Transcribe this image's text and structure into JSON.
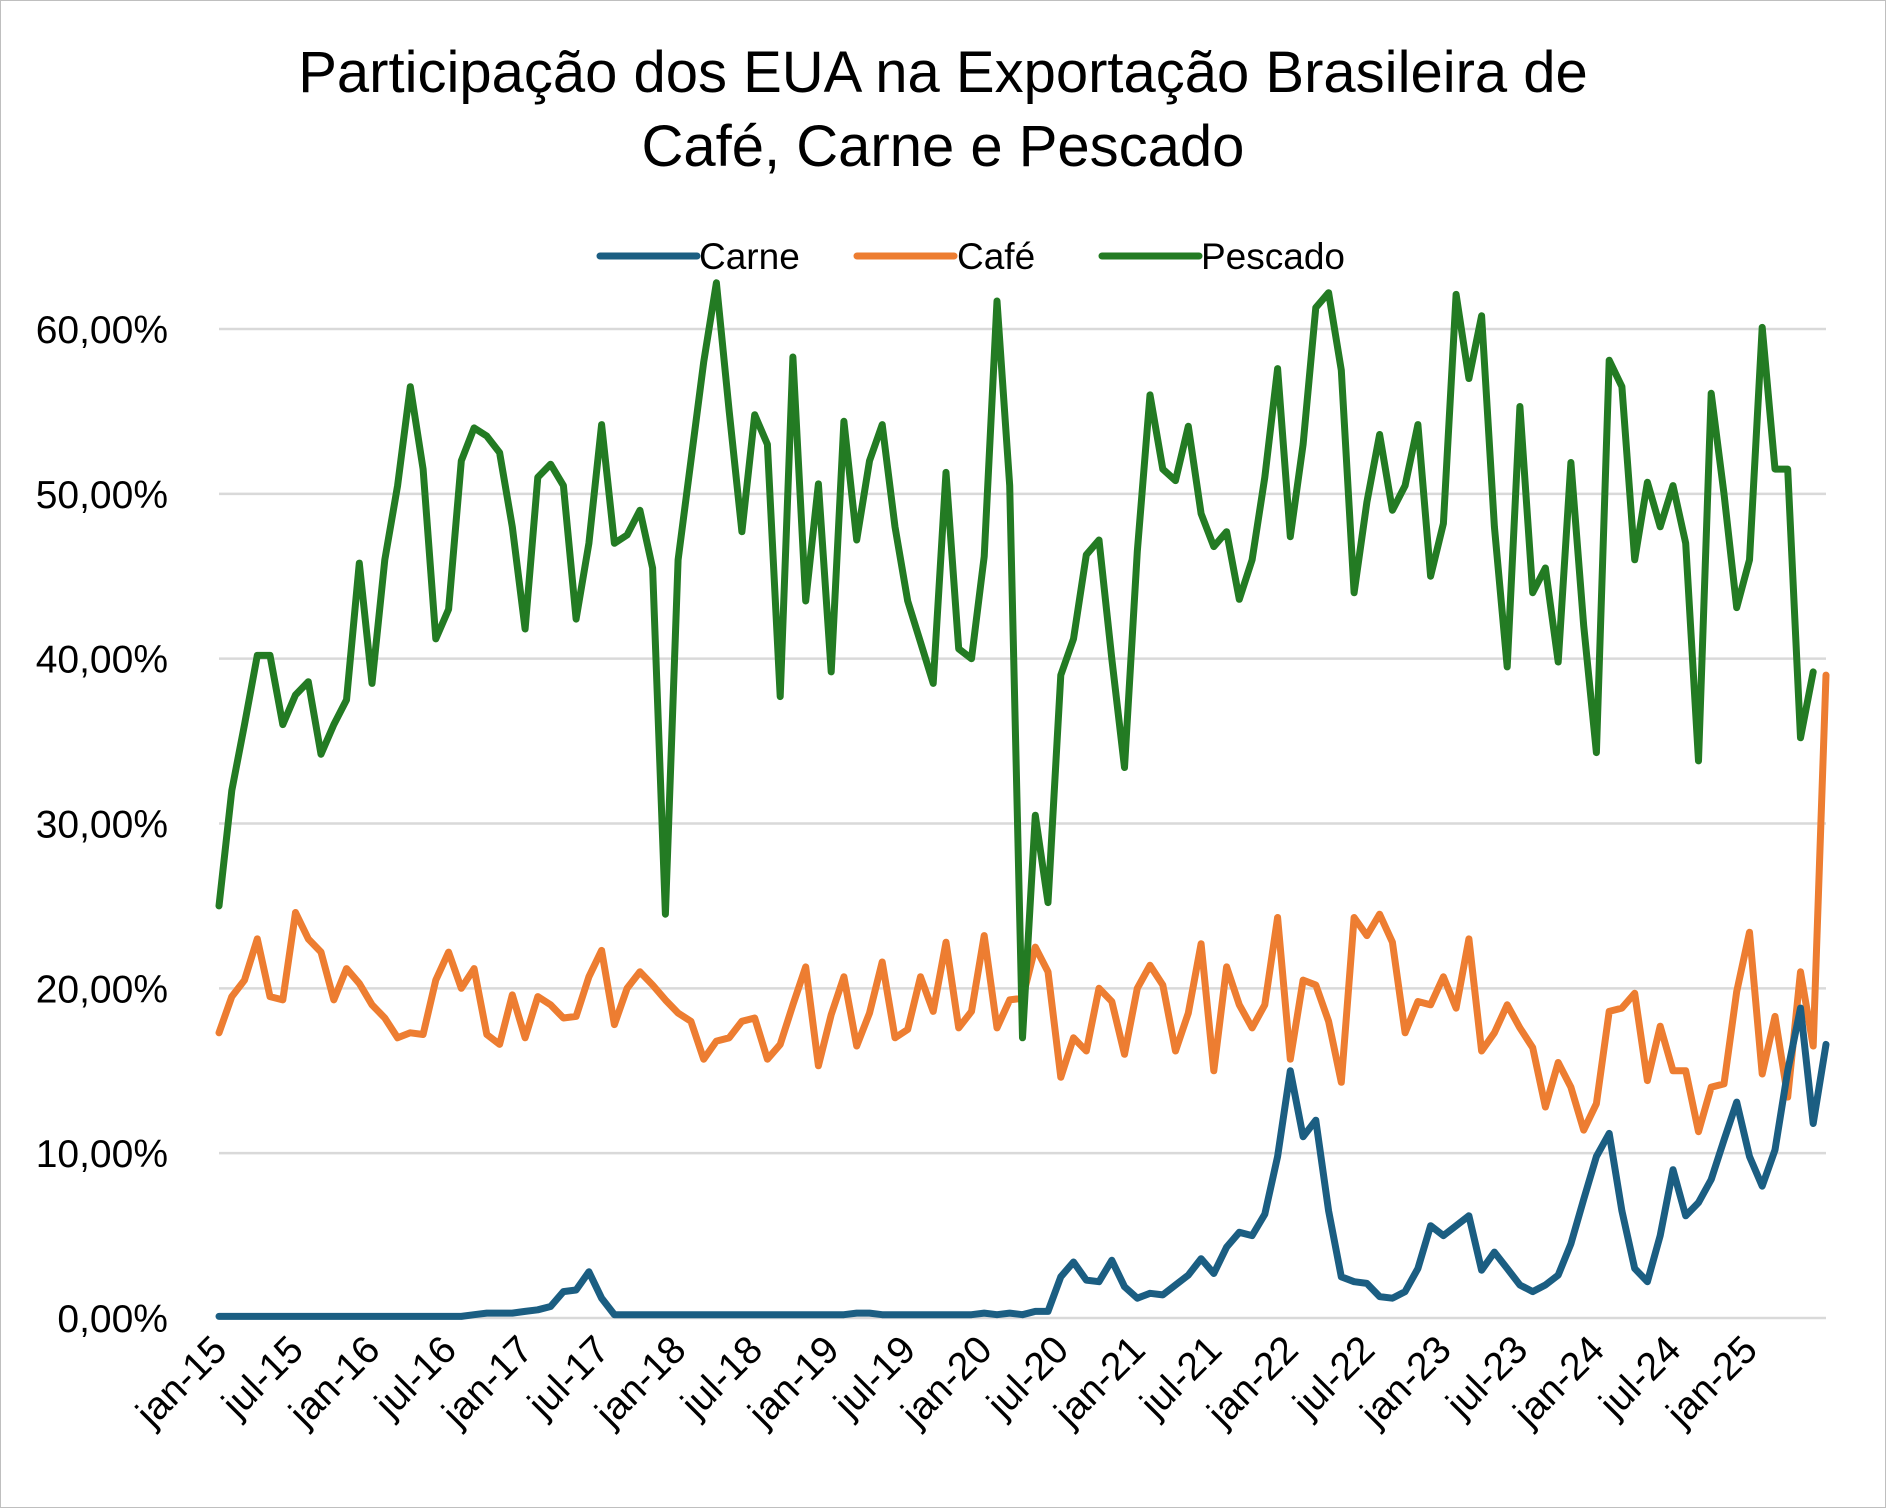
{
  "chart_data": {
    "type": "line",
    "title_lines": [
      "Participação dos EUA na Exportação Brasileira de",
      "Café, Carne e Pescado"
    ],
    "xlabel": "",
    "ylabel": "",
    "ylim": [
      0,
      0.6
    ],
    "yticks": [
      0,
      0.1,
      0.2,
      0.3,
      0.4,
      0.5,
      0.6
    ],
    "ytick_labels": [
      "0,00%",
      "10,00%",
      "20,00%",
      "30,00%",
      "40,00%",
      "50,00%",
      "60,00%"
    ],
    "xtick_labels": [
      "jan-15",
      "jul-15",
      "jan-16",
      "jul-16",
      "jan-17",
      "jul-17",
      "jan-18",
      "jul-18",
      "jan-19",
      "jul-19",
      "jan-20",
      "jul-20",
      "jan-21",
      "jul-21",
      "jan-22",
      "jul-22",
      "jan-23",
      "jul-23",
      "jan-24",
      "jul-24",
      "jan-25"
    ],
    "xtick_every_months": 6,
    "grid": true,
    "legend_position": "top-center",
    "colors": {
      "Carne": "#1b5e82",
      "Café": "#ed7d31",
      "Pescado": "#237b23",
      "grid": "#d9d9d9"
    },
    "series": [
      {
        "name": "Carne",
        "color": "#1b5e82",
        "values": [
          0.001,
          0.001,
          0.001,
          0.001,
          0.001,
          0.001,
          0.001,
          0.001,
          0.001,
          0.001,
          0.001,
          0.001,
          0.001,
          0.001,
          0.001,
          0.001,
          0.001,
          0.001,
          0.001,
          0.001,
          0.002,
          0.003,
          0.003,
          0.003,
          0.004,
          0.005,
          0.007,
          0.016,
          0.017,
          0.028,
          0.012,
          0.002,
          0.002,
          0.002,
          0.002,
          0.002,
          0.002,
          0.002,
          0.002,
          0.002,
          0.002,
          0.002,
          0.002,
          0.002,
          0.002,
          0.002,
          0.002,
          0.002,
          0.002,
          0.002,
          0.003,
          0.003,
          0.002,
          0.002,
          0.002,
          0.002,
          0.002,
          0.002,
          0.002,
          0.002,
          0.003,
          0.002,
          0.003,
          0.002,
          0.004,
          0.004,
          0.025,
          0.034,
          0.023,
          0.022,
          0.035,
          0.019,
          0.012,
          0.015,
          0.014,
          0.02,
          0.026,
          0.036,
          0.027,
          0.043,
          0.052,
          0.05,
          0.063,
          0.098,
          0.15,
          0.11,
          0.12,
          0.065,
          0.025,
          0.022,
          0.021,
          0.013,
          0.012,
          0.016,
          0.03,
          0.056,
          0.05,
          0.056,
          0.062,
          0.029,
          0.04,
          0.03,
          0.02,
          0.016,
          0.02,
          0.026,
          0.045,
          0.072,
          0.098,
          0.112,
          0.065,
          0.03,
          0.022,
          0.05,
          0.09,
          0.062,
          0.07,
          0.084,
          0.108,
          0.131,
          0.098,
          0.08,
          0.102,
          0.15,
          0.188,
          0.118,
          0.166
        ]
      },
      {
        "name": "Café",
        "color": "#ed7d31",
        "values": [
          0.173,
          0.195,
          0.205,
          0.23,
          0.195,
          0.193,
          0.246,
          0.23,
          0.222,
          0.193,
          0.212,
          0.203,
          0.19,
          0.182,
          0.17,
          0.173,
          0.172,
          0.205,
          0.222,
          0.2,
          0.212,
          0.172,
          0.166,
          0.196,
          0.17,
          0.195,
          0.19,
          0.182,
          0.183,
          0.207,
          0.223,
          0.178,
          0.2,
          0.21,
          0.202,
          0.193,
          0.185,
          0.18,
          0.157,
          0.168,
          0.17,
          0.18,
          0.182,
          0.157,
          0.166,
          0.19,
          0.213,
          0.153,
          0.184,
          0.207,
          0.165,
          0.185,
          0.216,
          0.17,
          0.175,
          0.207,
          0.186,
          0.228,
          0.176,
          0.186,
          0.232,
          0.176,
          0.193,
          0.194,
          0.225,
          0.21,
          0.146,
          0.17,
          0.162,
          0.2,
          0.192,
          0.16,
          0.2,
          0.214,
          0.202,
          0.162,
          0.185,
          0.227,
          0.15,
          0.213,
          0.19,
          0.176,
          0.19,
          0.243,
          0.157,
          0.205,
          0.202,
          0.18,
          0.143,
          0.243,
          0.232,
          0.245,
          0.228,
          0.173,
          0.192,
          0.19,
          0.207,
          0.188,
          0.23,
          0.162,
          0.173,
          0.19,
          0.176,
          0.164,
          0.128,
          0.155,
          0.14,
          0.114,
          0.13,
          0.186,
          0.188,
          0.197,
          0.144,
          0.177,
          0.15,
          0.15,
          0.113,
          0.14,
          0.142,
          0.198,
          0.234,
          0.148,
          0.183,
          0.134,
          0.21,
          0.165,
          0.39
        ]
      },
      {
        "name": "Pescado",
        "color": "#237b23",
        "values": [
          0.25,
          0.32,
          0.36,
          0.402,
          0.402,
          0.36,
          0.378,
          0.386,
          0.342,
          0.36,
          0.375,
          0.458,
          0.385,
          0.46,
          0.505,
          0.565,
          0.515,
          0.412,
          0.43,
          0.52,
          0.54,
          0.535,
          0.525,
          0.48,
          0.418,
          0.51,
          0.518,
          0.505,
          0.424,
          0.47,
          0.542,
          0.47,
          0.475,
          0.49,
          0.455,
          0.245,
          0.46,
          0.52,
          0.58,
          0.628,
          0.55,
          0.477,
          0.548,
          0.53,
          0.377,
          0.583,
          0.435,
          0.506,
          0.392,
          0.544,
          0.472,
          0.52,
          0.542,
          0.48,
          0.435,
          0.41,
          0.385,
          0.513,
          0.406,
          0.4,
          0.462,
          0.617,
          0.505,
          0.17,
          0.305,
          0.252,
          0.39,
          0.412,
          0.463,
          0.472,
          0.4,
          0.334,
          0.465,
          0.56,
          0.515,
          0.508,
          0.541,
          0.488,
          0.468,
          0.477,
          0.436,
          0.46,
          0.51,
          0.576,
          0.474,
          0.53,
          0.613,
          0.622,
          0.575,
          0.44,
          0.495,
          0.536,
          0.49,
          0.505,
          0.542,
          0.45,
          0.482,
          0.621,
          0.57,
          0.608,
          0.48,
          0.395,
          0.553,
          0.44,
          0.455,
          0.398,
          0.519,
          0.42,
          0.343,
          0.581,
          0.565,
          0.46,
          0.507,
          0.48,
          0.505,
          0.47,
          0.338,
          0.561,
          0.5,
          0.431,
          0.46,
          0.601,
          0.515,
          0.515,
          0.352,
          0.392
        ]
      }
    ]
  }
}
